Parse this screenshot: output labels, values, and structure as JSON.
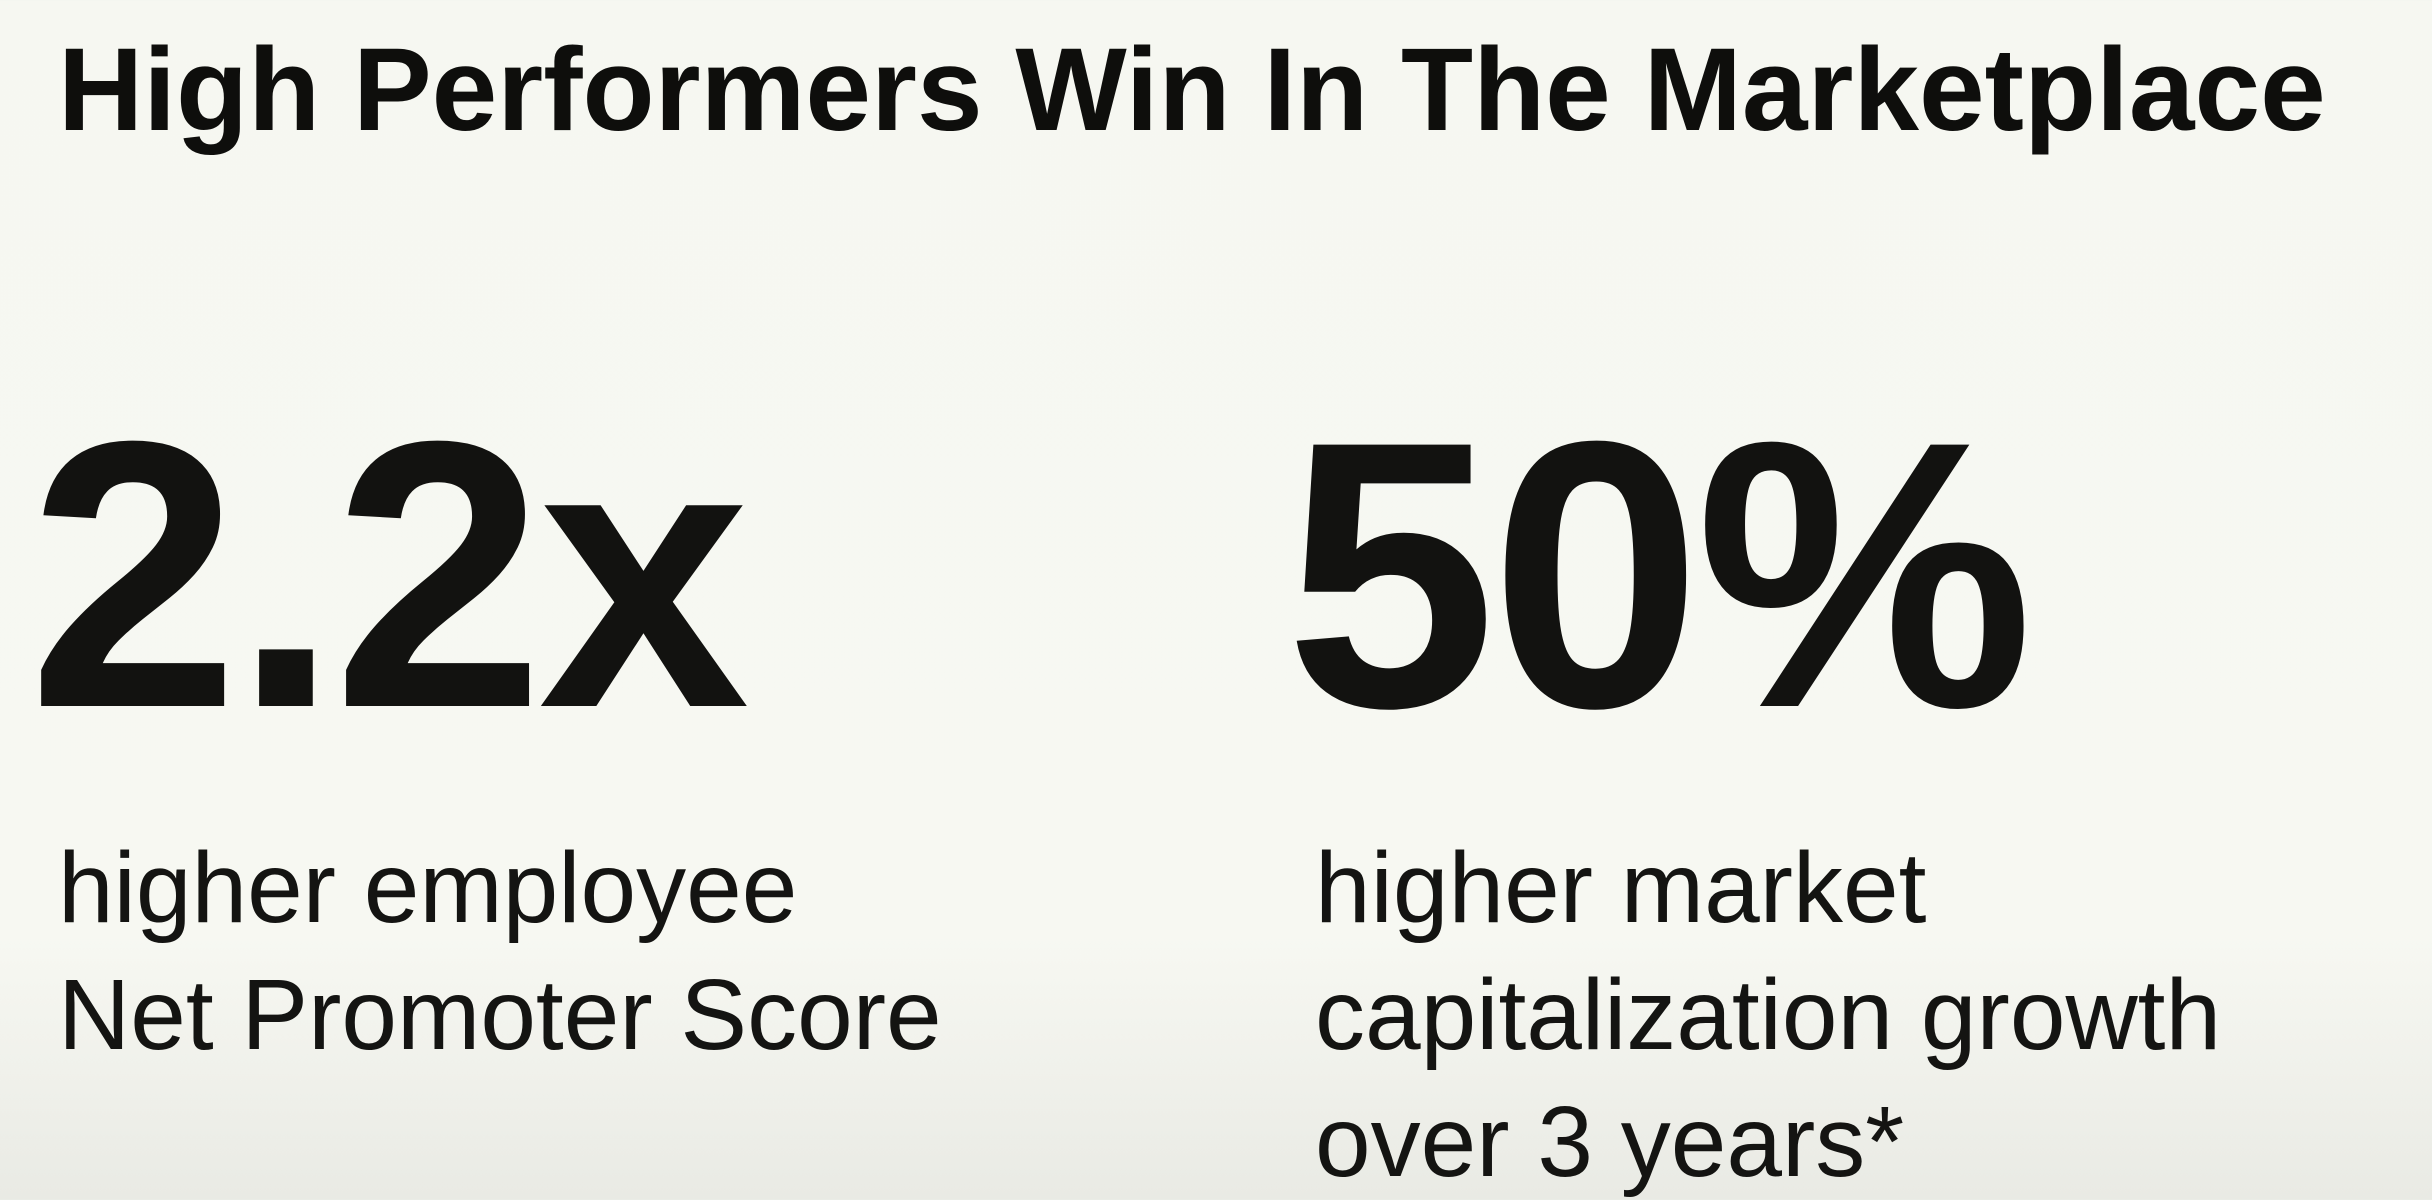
{
  "slide": {
    "title": "High Performers Win In The Marketplace",
    "stats": [
      {
        "value": "2.2x",
        "description_lines": [
          "higher employee",
          "Net Promoter Score"
        ]
      },
      {
        "value": "50%",
        "description_lines": [
          "higher market",
          "capitalization growth",
          "over 3 years*"
        ]
      }
    ]
  },
  "colors": {
    "background": "#f6f7f1",
    "text": "#111111"
  }
}
